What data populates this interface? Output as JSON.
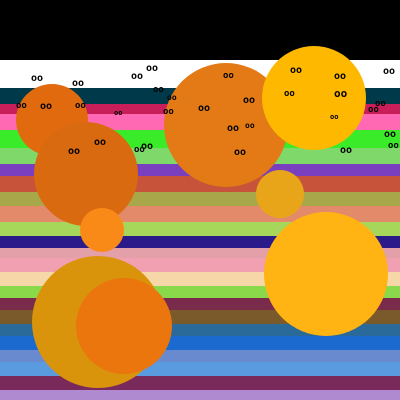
{
  "background": "#000000",
  "stripe_colors": [
    "#ffffff",
    "#003a4a",
    "#c81e5a",
    "#ff69b4",
    "#3aeb2a",
    "#7fd96a",
    "#7a3fbf",
    "#c7533a",
    "#a8a84a",
    "#e38a6a",
    "#a6d65a",
    "#2a1a8a",
    "#e3a0a8",
    "#f0a0b0",
    "#f6d8a8",
    "#8ad94a",
    "#7a2a4a",
    "#7a5a2a",
    "#2a6a9a",
    "#1a6acf",
    "#6a8acf",
    "#5a9adf",
    "#7a2a5a",
    "#b08ad0"
  ],
  "ball_colors": [
    "#e26a0e",
    "#d96a10",
    "#e37a16",
    "#ffb800",
    "#e8a51a",
    "#fa8a18",
    "#d9940c",
    "#eb760e",
    "#ffb414"
  ],
  "eye_glyph": "oo"
}
